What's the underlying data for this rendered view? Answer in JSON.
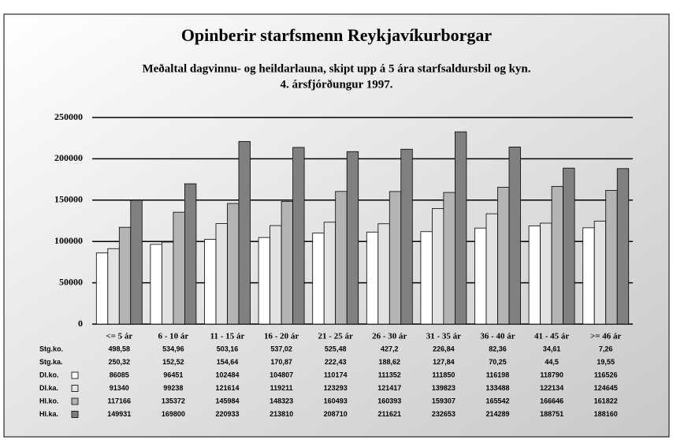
{
  "chart_data": {
    "type": "bar",
    "title": "Opinberir starfsmenn Reykjavíkurborgar",
    "subtitle": [
      "Meðaltal dagvinnu- og heildarlauna, skipt upp á 5 ára starfsaldursbil og kyn.",
      "4. ársfjórðungur 1997."
    ],
    "categories": [
      "<= 5 ár",
      "6 - 10 ár",
      "11 - 15 ár",
      "16 - 20 ár",
      "21 - 25 ár",
      "26 - 30 ár",
      "31 - 35 ár",
      "36 - 40 ár",
      "41 - 45 ár",
      ">= 46 ár"
    ],
    "extra_rows": [
      {
        "name": "Stg.ko.",
        "labels": [
          "498,58",
          "534,96",
          "503,16",
          "537,02",
          "525,48",
          "427,2",
          "226,84",
          "82,36",
          "34,61",
          "7,26"
        ]
      },
      {
        "name": "Stg.ka.",
        "labels": [
          "250,32",
          "152,52",
          "154,64",
          "170,87",
          "222,43",
          "188,62",
          "127,84",
          "70,25",
          "44,5",
          "19,55"
        ]
      }
    ],
    "series": [
      {
        "name": "Dl.ko.",
        "color": "#ffffff",
        "values": [
          86085,
          96451,
          102484,
          104807,
          110174,
          111352,
          111850,
          116198,
          118790,
          116526
        ]
      },
      {
        "name": "Dl.ka.",
        "color": "#e2e2e2",
        "values": [
          91340,
          99238,
          121614,
          119211,
          123293,
          121417,
          139823,
          133488,
          122134,
          124645
        ]
      },
      {
        "name": "Hl.ko.",
        "color": "#b4b4b4",
        "values": [
          117166,
          135372,
          145984,
          148323,
          160493,
          160393,
          159307,
          165542,
          166646,
          161822
        ]
      },
      {
        "name": "Hl.ka.",
        "color": "#808080",
        "values": [
          149931,
          169800,
          220933,
          213810,
          208710,
          211621,
          232653,
          214289,
          188751,
          188160
        ]
      }
    ],
    "ylim": [
      0,
      250000
    ],
    "yticks": [
      0,
      50000,
      100000,
      150000,
      200000,
      250000
    ],
    "grid": true
  }
}
